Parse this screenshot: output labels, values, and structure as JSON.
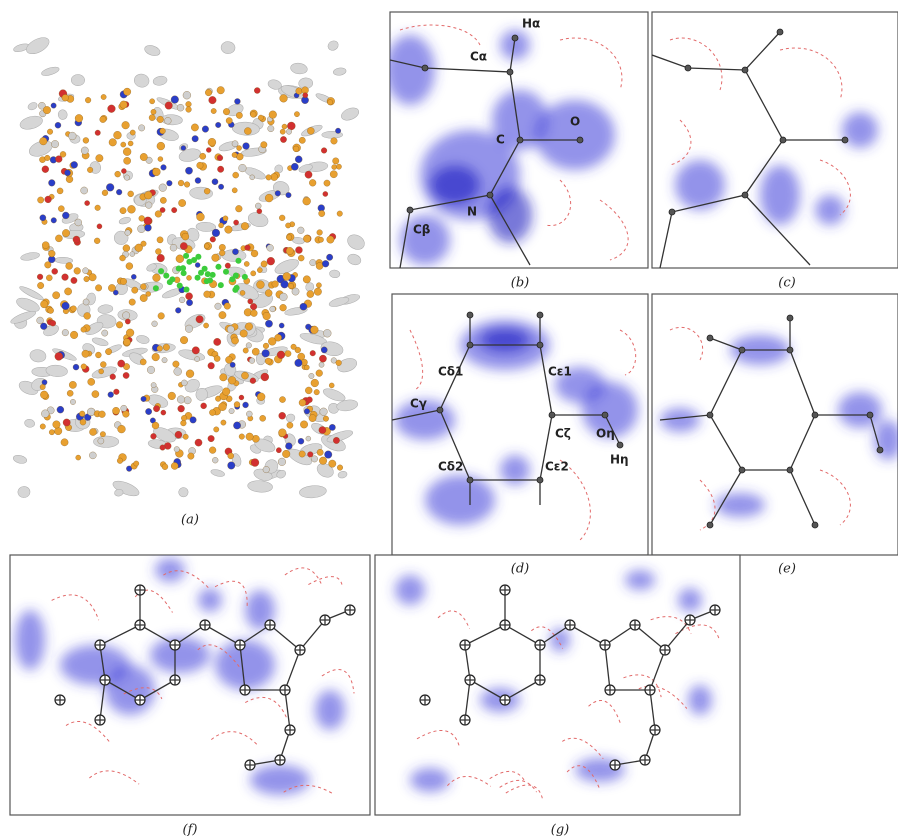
{
  "panels": [
    {
      "caption": "(a)"
    },
    {
      "caption": "(b)",
      "atom_labels": [
        "Hα",
        "Cα",
        "C",
        "O",
        "N",
        "Cβ"
      ]
    },
    {
      "caption": "(c)"
    },
    {
      "caption": "(d)",
      "atom_labels": [
        "Cδ1",
        "Cε1",
        "Cγ",
        "Cζ",
        "Oη",
        "Hη",
        "Cδ2",
        "Cε2"
      ]
    },
    {
      "caption": "(e)"
    },
    {
      "caption": "(f)"
    },
    {
      "caption": "(g)"
    }
  ]
}
